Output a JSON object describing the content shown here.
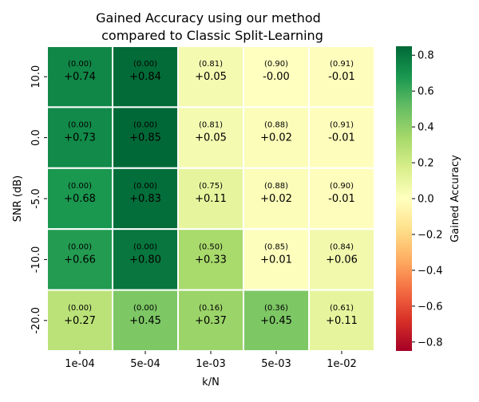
{
  "chart_data": {
    "type": "heatmap",
    "title_line1": "Gained Accuracy using our method",
    "title_line2": "compared to Classic Split-Learning",
    "xlabel": "k/N",
    "ylabel": "SNR (dB)",
    "x_categories": [
      "1e-04",
      "5e-04",
      "1e-03",
      "5e-03",
      "1e-02"
    ],
    "y_categories": [
      "10.0",
      "0.0",
      "-5.0",
      "-10.0",
      "-20.0"
    ],
    "values": [
      [
        0.74,
        0.84,
        0.05,
        -0.0,
        -0.01
      ],
      [
        0.73,
        0.85,
        0.05,
        0.02,
        -0.01
      ],
      [
        0.68,
        0.83,
        0.11,
        0.02,
        -0.01
      ],
      [
        0.66,
        0.8,
        0.33,
        0.01,
        0.06
      ],
      [
        0.27,
        0.45,
        0.37,
        0.45,
        0.11
      ]
    ],
    "value_labels": [
      [
        "+0.74",
        "+0.84",
        "+0.05",
        "-0.00",
        "-0.01"
      ],
      [
        "+0.73",
        "+0.85",
        "+0.05",
        "+0.02",
        "-0.01"
      ],
      [
        "+0.68",
        "+0.83",
        "+0.11",
        "+0.02",
        "-0.01"
      ],
      [
        "+0.66",
        "+0.80",
        "+0.33",
        "+0.01",
        "+0.06"
      ],
      [
        "+0.27",
        "+0.45",
        "+0.37",
        "+0.45",
        "+0.11"
      ]
    ],
    "secondary_labels": [
      [
        "(0.00)",
        "(0.00)",
        "(0.81)",
        "(0.90)",
        "(0.91)"
      ],
      [
        "(0.00)",
        "(0.00)",
        "(0.81)",
        "(0.88)",
        "(0.91)"
      ],
      [
        "(0.00)",
        "(0.00)",
        "(0.75)",
        "(0.88)",
        "(0.90)"
      ],
      [
        "(0.00)",
        "(0.00)",
        "(0.50)",
        "(0.85)",
        "(0.84)"
      ],
      [
        "(0.00)",
        "(0.00)",
        "(0.16)",
        "(0.36)",
        "(0.61)"
      ]
    ],
    "colorbar": {
      "label": "Gained Accuracy",
      "range": [
        -0.85,
        0.85
      ],
      "ticks": [
        0.8,
        0.6,
        0.4,
        0.2,
        0.0,
        -0.2,
        -0.4,
        -0.6,
        -0.8
      ],
      "tick_labels": [
        "0.8",
        "0.6",
        "0.4",
        "0.2",
        "0.0",
        "−0.2",
        "−0.4",
        "−0.6",
        "−0.8"
      ],
      "colormap": "RdYlGn"
    }
  }
}
